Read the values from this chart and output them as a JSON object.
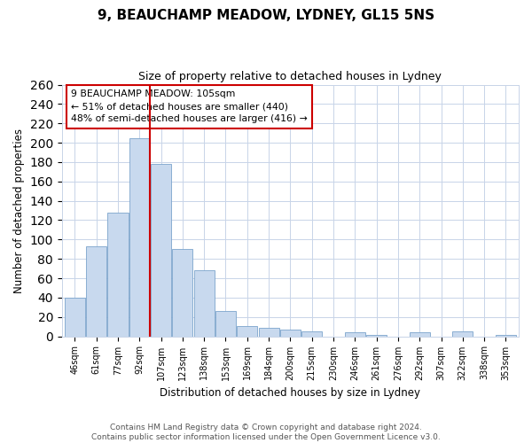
{
  "title": "9, BEAUCHAMP MEADOW, LYDNEY, GL15 5NS",
  "subtitle": "Size of property relative to detached houses in Lydney",
  "xlabel": "Distribution of detached houses by size in Lydney",
  "ylabel": "Number of detached properties",
  "bar_labels": [
    "46sqm",
    "61sqm",
    "77sqm",
    "92sqm",
    "107sqm",
    "123sqm",
    "138sqm",
    "153sqm",
    "169sqm",
    "184sqm",
    "200sqm",
    "215sqm",
    "230sqm",
    "246sqm",
    "261sqm",
    "276sqm",
    "292sqm",
    "307sqm",
    "322sqm",
    "338sqm",
    "353sqm"
  ],
  "bar_values": [
    40,
    93,
    128,
    205,
    178,
    90,
    68,
    26,
    11,
    9,
    7,
    5,
    0,
    4,
    1,
    0,
    4,
    0,
    5,
    0,
    1
  ],
  "bar_color": "#c8d9ee",
  "bar_edge_color": "#7ba4cc",
  "vline_color": "#cc0000",
  "annotation_line1": "9 BEAUCHAMP MEADOW: 105sqm",
  "annotation_line2": "← 51% of detached houses are smaller (440)",
  "annotation_line3": "48% of semi-detached houses are larger (416) →",
  "annotation_box_color": "#ffffff",
  "annotation_box_edge": "#cc0000",
  "ylim": [
    0,
    260
  ],
  "yticks": [
    0,
    20,
    40,
    60,
    80,
    100,
    120,
    140,
    160,
    180,
    200,
    220,
    240,
    260
  ],
  "footer_line1": "Contains HM Land Registry data © Crown copyright and database right 2024.",
  "footer_line2": "Contains public sector information licensed under the Open Government Licence v3.0.",
  "bg_color": "#ffffff",
  "grid_color": "#c8d4e8"
}
